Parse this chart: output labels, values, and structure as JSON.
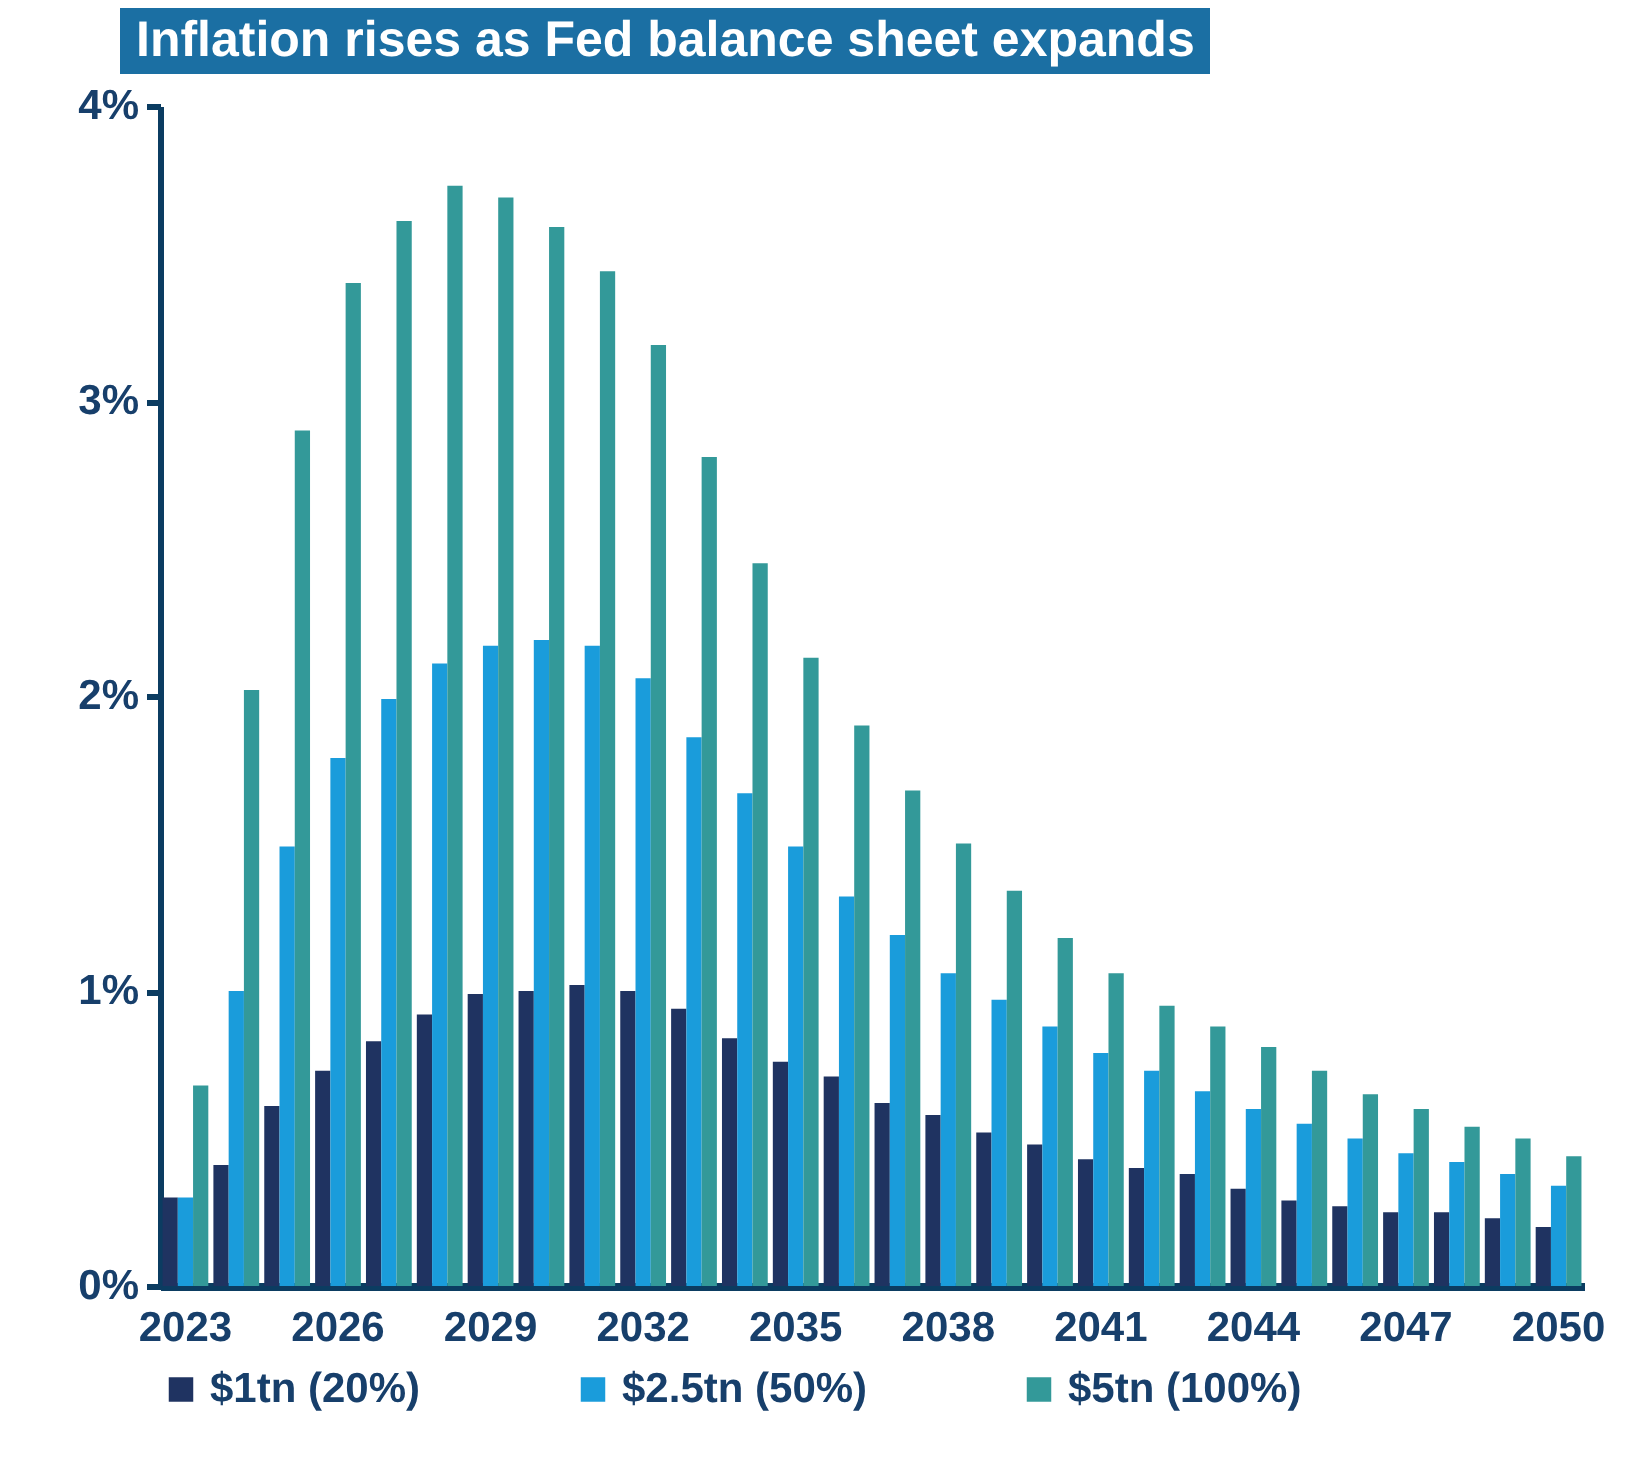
{
  "chart_data": {
    "type": "bar",
    "title": "Inflation rises as Fed balance sheet expands",
    "categories": [
      "2023",
      null,
      null,
      "2026",
      null,
      null,
      "2029",
      null,
      null,
      "2032",
      null,
      null,
      "2035",
      null,
      null,
      "2038",
      null,
      null,
      "2041",
      null,
      null,
      "2044",
      null,
      null,
      "2047",
      null,
      null,
      "2050"
    ],
    "series": [
      {
        "name": "$1tn (20%)",
        "color": "#1f3361",
        "values": [
          0.3,
          0.41,
          0.61,
          0.73,
          0.83,
          0.92,
          0.99,
          1.0,
          1.02,
          1.0,
          0.94,
          0.84,
          0.76,
          0.71,
          0.62,
          0.58,
          0.52,
          0.48,
          0.43,
          0.4,
          0.38,
          0.33,
          0.29,
          0.27,
          0.25,
          0.25,
          0.23,
          0.2
        ]
      },
      {
        "name": "$2.5tn (50%)",
        "color": "#1a9cdb",
        "values": [
          0.3,
          1.0,
          1.49,
          1.79,
          1.99,
          2.11,
          2.17,
          2.19,
          2.17,
          2.06,
          1.86,
          1.67,
          1.49,
          1.32,
          1.19,
          1.06,
          0.97,
          0.88,
          0.79,
          0.73,
          0.66,
          0.6,
          0.55,
          0.5,
          0.45,
          0.42,
          0.38,
          0.34
        ]
      },
      {
        "name": "$5tn (100%)",
        "color": "#339999",
        "values": [
          0.68,
          2.02,
          2.9,
          3.4,
          3.61,
          3.73,
          3.69,
          3.59,
          3.44,
          3.19,
          2.81,
          2.45,
          2.13,
          1.9,
          1.68,
          1.5,
          1.34,
          1.18,
          1.06,
          0.95,
          0.88,
          0.81,
          0.73,
          0.65,
          0.6,
          0.54,
          0.5,
          0.44
        ]
      }
    ],
    "ylim": [
      0,
      4
    ],
    "yticks": [
      {
        "value": 0,
        "label": "0%"
      },
      {
        "value": 1,
        "label": "1%"
      },
      {
        "value": 2,
        "label": "2%"
      },
      {
        "value": 3,
        "label": "3%"
      },
      {
        "value": 4,
        "label": "4%"
      }
    ],
    "grid": false,
    "legend": "bottom"
  }
}
